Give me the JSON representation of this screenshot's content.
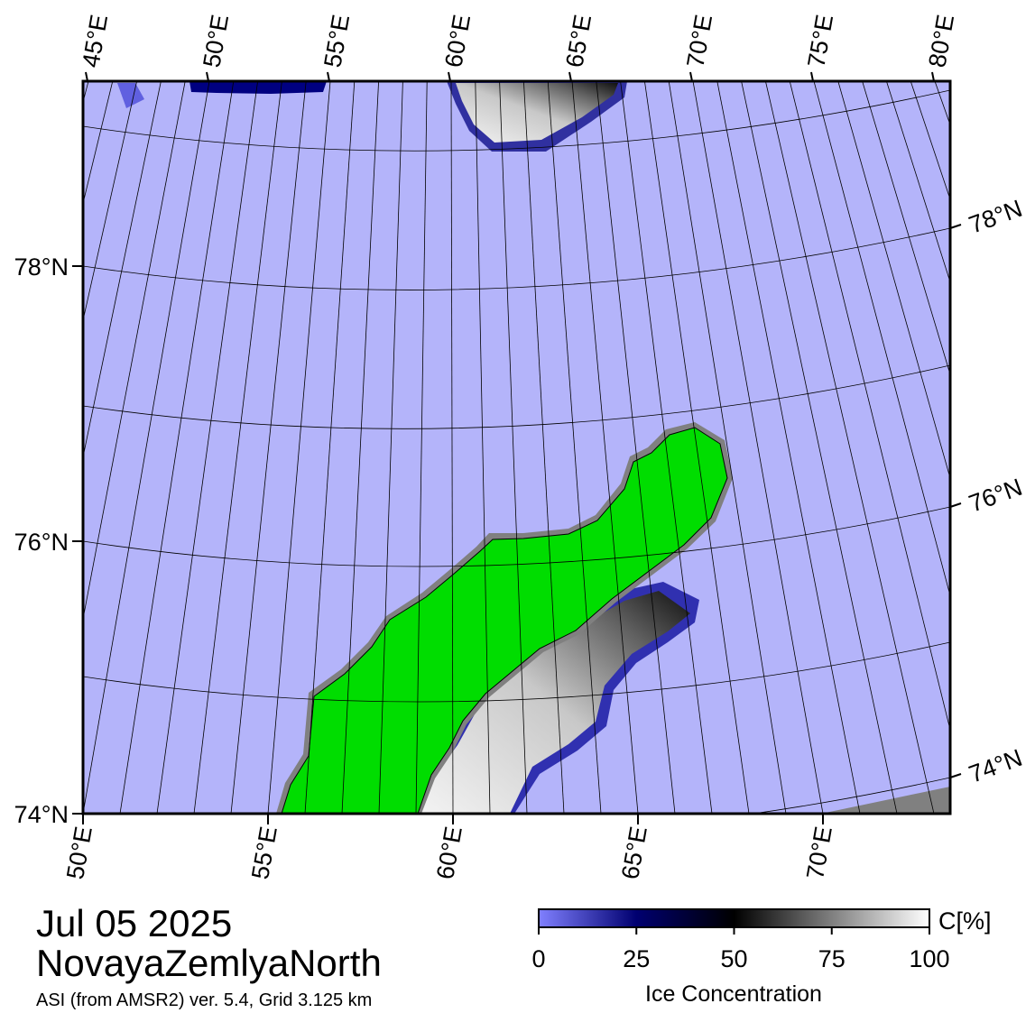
{
  "top_labels": [
    "45°E",
    "50°E",
    "55°E",
    "60°E",
    "65°E",
    "70°E",
    "75°E",
    "80°E"
  ],
  "left_labels": [
    "78°N",
    "76°N",
    "74°N"
  ],
  "right_labels": [
    "78°N",
    "76°N",
    "74°N"
  ],
  "bottom_labels": [
    "50°E",
    "55°E",
    "60°E",
    "65°E",
    "70°E"
  ],
  "caption": {
    "date": "Jul 05 2025",
    "region": "NovayaZemlyaNorth",
    "source": "ASI (from AMSR2) ver. 5.4,  Grid 3.125 km"
  },
  "colorbar": {
    "unit": "C[%]",
    "title": "Ice Concentration",
    "range": [
      0,
      100
    ],
    "ticks": [
      0,
      25,
      50,
      75,
      100
    ]
  }
}
